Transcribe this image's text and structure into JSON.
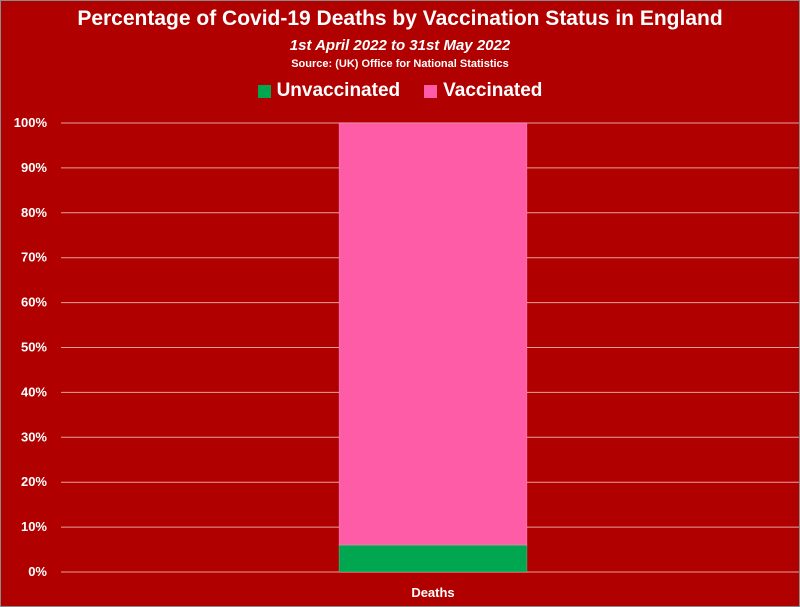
{
  "chart_data": {
    "type": "bar",
    "stacked": true,
    "percent_stacked": true,
    "title": "Percentage of Covid-19 Deaths by Vaccination Status in England",
    "subtitle": "1st April 2022 to 31st May 2022",
    "source": "Source: (UK) Office for National Statistics",
    "categories": [
      "Deaths"
    ],
    "series": [
      {
        "name": "Unvaccinated",
        "values": [
          6
        ],
        "color": "#00a650"
      },
      {
        "name": "Vaccinated",
        "values": [
          94
        ],
        "color": "#ff5ca8"
      }
    ],
    "ylim": [
      0,
      100
    ],
    "yticks": [
      "0%",
      "10%",
      "20%",
      "30%",
      "40%",
      "50%",
      "60%",
      "70%",
      "80%",
      "90%",
      "100%"
    ],
    "xlabel": "",
    "ylabel": "",
    "grid": true,
    "legend_position": "top",
    "background_color": "#b00000",
    "gridline_color": "#e7a0a0"
  }
}
